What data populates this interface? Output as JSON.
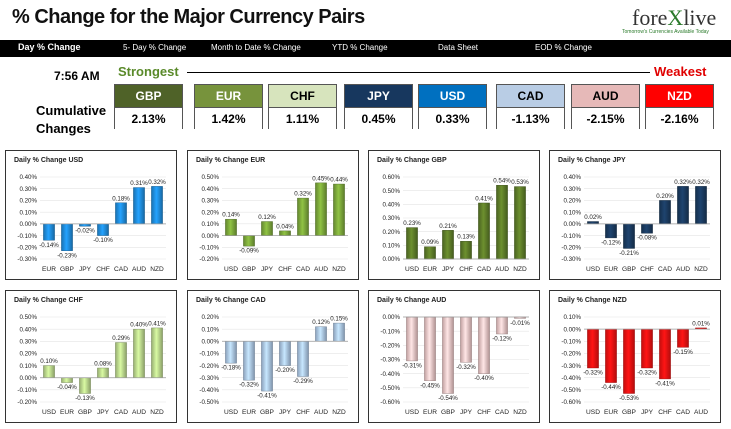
{
  "header": {
    "title": "% Change for the Major Currency Pairs",
    "logo_text_a": "fore",
    "logo_text_b": "X",
    "logo_text_c": "live",
    "logo_tagline": "Tomorrow's Currencies Available Today"
  },
  "nav": {
    "items": [
      "Day % Change",
      "5- Day % Change",
      "Month to Date % Change",
      "YTD % Change",
      "Data Sheet",
      "EOD % Change"
    ]
  },
  "summary": {
    "time": "7:56 AM",
    "strongest_label": "Strongest",
    "weakest_label": "Weakest",
    "cumulative_label_1": "Cumulative",
    "cumulative_label_2": "Changes",
    "currencies": [
      {
        "name": "GBP",
        "value": "2.13%",
        "color": "#4f6228",
        "text_color": "#ffffff"
      },
      {
        "name": "EUR",
        "value": "1.42%",
        "color": "#77933c",
        "text_color": "#ffffff"
      },
      {
        "name": "CHF",
        "value": "1.11%",
        "color": "#d7e4bd",
        "text_color": "#000000"
      },
      {
        "name": "JPY",
        "value": "0.45%",
        "color": "#17375e",
        "text_color": "#ffffff"
      },
      {
        "name": "USD",
        "value": "0.33%",
        "color": "#0070c0",
        "text_color": "#ffffff"
      },
      {
        "name": "CAD",
        "value": "-1.13%",
        "color": "#b9cde5",
        "text_color": "#000000"
      },
      {
        "name": "AUD",
        "value": "-2.15%",
        "color": "#e6b9b8",
        "text_color": "#000000"
      },
      {
        "name": "NZD",
        "value": "-2.16%",
        "color": "#ff0000",
        "text_color": "#ffffff"
      }
    ]
  },
  "chart_data": [
    {
      "type": "bar",
      "title": "Daily % Change USD",
      "categories": [
        "EUR",
        "GBP",
        "JPY",
        "CHF",
        "CAD",
        "AUD",
        "NZD"
      ],
      "values": [
        -0.14,
        -0.23,
        -0.02,
        -0.1,
        0.18,
        0.31,
        0.32
      ],
      "data_labels": [
        "-0.14%",
        "-0.23%",
        "-0.02%",
        "-0.10%",
        "0.18%",
        "0.31%",
        "0.32%"
      ],
      "ylim": [
        -0.3,
        0.4
      ],
      "yticks": [
        0.4,
        0.3,
        0.2,
        0.1,
        0.0,
        -0.1,
        -0.2,
        -0.3
      ],
      "ytick_labels": [
        "0.40%",
        "0.30%",
        "0.20%",
        "0.10%",
        "0.00%",
        "-0.10%",
        "-0.20%",
        "-0.30%"
      ],
      "color": "#1f8ad8"
    },
    {
      "type": "bar",
      "title": "Daily % Change EUR",
      "categories": [
        "USD",
        "GBP",
        "JPY",
        "CHF",
        "CAD",
        "AUD",
        "NZD"
      ],
      "values": [
        0.14,
        -0.09,
        0.12,
        0.04,
        0.32,
        0.45,
        0.44
      ],
      "data_labels": [
        "0.14%",
        "-0.09%",
        "0.12%",
        "0.04%",
        "0.32%",
        "0.45%",
        "0.44%"
      ],
      "ylim": [
        -0.2,
        0.5
      ],
      "yticks": [
        0.5,
        0.4,
        0.3,
        0.2,
        0.1,
        0.0,
        -0.1,
        -0.2
      ],
      "ytick_labels": [
        "0.50%",
        "0.40%",
        "0.30%",
        "0.20%",
        "0.10%",
        "0.00%",
        "-0.10%",
        "-0.20%"
      ],
      "color": "#7aa53a"
    },
    {
      "type": "bar",
      "title": "Daily % Change GBP",
      "categories": [
        "USD",
        "EUR",
        "JPY",
        "CHF",
        "CAD",
        "AUD",
        "NZD"
      ],
      "values": [
        0.23,
        0.09,
        0.21,
        0.13,
        0.41,
        0.54,
        0.53
      ],
      "data_labels": [
        "0.23%",
        "0.09%",
        "0.21%",
        "0.13%",
        "0.41%",
        "0.54%",
        "0.53%"
      ],
      "ylim": [
        0.0,
        0.6
      ],
      "yticks": [
        0.6,
        0.5,
        0.4,
        0.3,
        0.2,
        0.1,
        0.0
      ],
      "ytick_labels": [
        "0.60%",
        "0.50%",
        "0.40%",
        "0.30%",
        "0.20%",
        "0.10%",
        "0.00%"
      ],
      "color": "#5c7a28"
    },
    {
      "type": "bar",
      "title": "Daily % Change JPY",
      "categories": [
        "USD",
        "EUR",
        "GBP",
        "CHF",
        "CAD",
        "AUD",
        "NZD"
      ],
      "values": [
        0.02,
        -0.12,
        -0.21,
        -0.08,
        0.2,
        0.32,
        0.32
      ],
      "data_labels": [
        "0.02%",
        "-0.12%",
        "-0.21%",
        "-0.08%",
        "0.20%",
        "0.32%",
        "0.32%"
      ],
      "ylim": [
        -0.3,
        0.4
      ],
      "yticks": [
        0.4,
        0.3,
        0.2,
        0.1,
        0.0,
        -0.1,
        -0.2,
        -0.3
      ],
      "ytick_labels": [
        "0.40%",
        "0.30%",
        "0.20%",
        "0.10%",
        "0.00%",
        "-0.10%",
        "-0.20%",
        "-0.30%"
      ],
      "color": "#1a3a5e"
    },
    {
      "type": "bar",
      "title": "Daily % Change CHF",
      "categories": [
        "USD",
        "EUR",
        "GBP",
        "JPY",
        "CAD",
        "AUD",
        "NZD"
      ],
      "values": [
        0.1,
        -0.04,
        -0.13,
        0.08,
        0.29,
        0.4,
        0.41
      ],
      "data_labels": [
        "0.10%",
        "-0.04%",
        "-0.13%",
        "0.08%",
        "0.29%",
        "0.40%",
        "0.41%"
      ],
      "ylim": [
        -0.2,
        0.5
      ],
      "yticks": [
        0.5,
        0.4,
        0.3,
        0.2,
        0.1,
        0.0,
        -0.1,
        -0.2
      ],
      "ytick_labels": [
        "0.50%",
        "0.40%",
        "0.30%",
        "0.20%",
        "0.10%",
        "0.00%",
        "-0.10%",
        "-0.20%"
      ],
      "color": "#b8d48a"
    },
    {
      "type": "bar",
      "title": "Daily % Change CAD",
      "categories": [
        "USD",
        "EUR",
        "GBP",
        "JPY",
        "CHF",
        "AUD",
        "NZD"
      ],
      "values": [
        -0.18,
        -0.32,
        -0.41,
        -0.2,
        -0.29,
        0.12,
        0.15
      ],
      "data_labels": [
        "-0.18%",
        "-0.32%",
        "-0.41%",
        "-0.20%",
        "-0.29%",
        "0.12%",
        "0.15%"
      ],
      "ylim": [
        -0.5,
        0.2
      ],
      "yticks": [
        0.2,
        0.1,
        0.0,
        -0.1,
        -0.2,
        -0.3,
        -0.4,
        -0.5
      ],
      "ytick_labels": [
        "0.20%",
        "0.10%",
        "0.00%",
        "-0.10%",
        "-0.20%",
        "-0.30%",
        "-0.40%",
        "-0.50%"
      ],
      "color": "#a9c4e4"
    },
    {
      "type": "bar",
      "title": "Daily % Change AUD",
      "categories": [
        "USD",
        "EUR",
        "GBP",
        "JPY",
        "CHF",
        "CAD",
        "NZD"
      ],
      "values": [
        -0.31,
        -0.45,
        -0.54,
        -0.32,
        -0.4,
        -0.12,
        -0.01
      ],
      "data_labels": [
        "-0.31%",
        "-0.45%",
        "-0.54%",
        "-0.32%",
        "-0.40%",
        "-0.12%",
        "-0.01%"
      ],
      "ylim": [
        -0.6,
        0.0
      ],
      "yticks": [
        0.0,
        -0.1,
        -0.2,
        -0.3,
        -0.4,
        -0.5,
        -0.6
      ],
      "ytick_labels": [
        "0.00%",
        "-0.10%",
        "-0.20%",
        "-0.30%",
        "-0.40%",
        "-0.50%",
        "-0.60%"
      ],
      "color": "#ebc3c3"
    },
    {
      "type": "bar",
      "title": "Daily % Change NZD",
      "categories": [
        "USD",
        "EUR",
        "GBP",
        "JPY",
        "CHF",
        "CAD",
        "AUD"
      ],
      "values": [
        -0.32,
        -0.44,
        -0.53,
        -0.32,
        -0.41,
        -0.15,
        0.01
      ],
      "data_labels": [
        "-0.32%",
        "-0.44%",
        "-0.53%",
        "-0.32%",
        "-0.41%",
        "-0.15%",
        "0.01%"
      ],
      "ylim": [
        -0.6,
        0.1
      ],
      "yticks": [
        0.1,
        0.0,
        -0.1,
        -0.2,
        -0.3,
        -0.4,
        -0.5,
        -0.6
      ],
      "ytick_labels": [
        "0.10%",
        "0.00%",
        "-0.10%",
        "-0.20%",
        "-0.30%",
        "-0.40%",
        "-0.50%",
        "-0.60%"
      ],
      "color": "#ee1111"
    }
  ]
}
